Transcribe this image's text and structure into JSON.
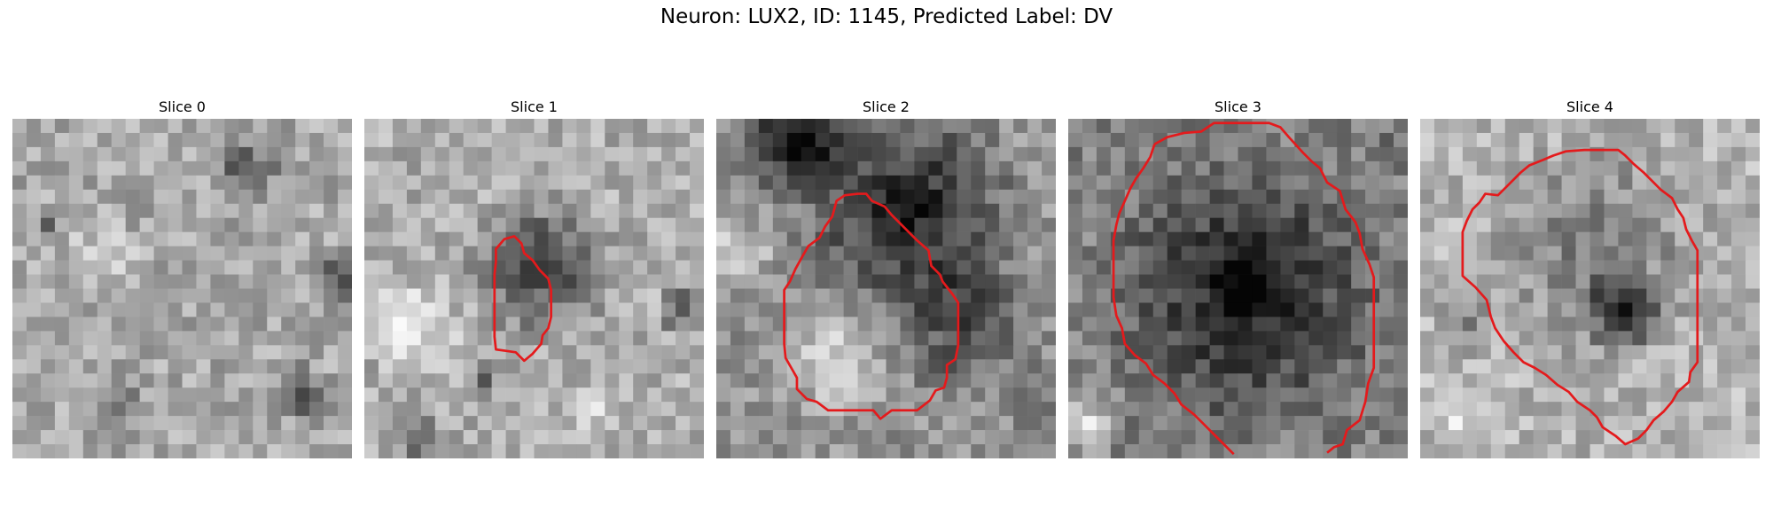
{
  "figure": {
    "title": "Neuron: LUX2, ID: 1145, Predicted Label: DV",
    "contour_color": "#e41a1c",
    "colormap": "grayscale",
    "panels": [
      {
        "title": "Slice 0",
        "has_contour": false
      },
      {
        "title": "Slice 1",
        "has_contour": true
      },
      {
        "title": "Slice 2",
        "has_contour": true
      },
      {
        "title": "Slice 3",
        "has_contour": true
      },
      {
        "title": "Slice 4",
        "has_contour": true
      }
    ]
  }
}
